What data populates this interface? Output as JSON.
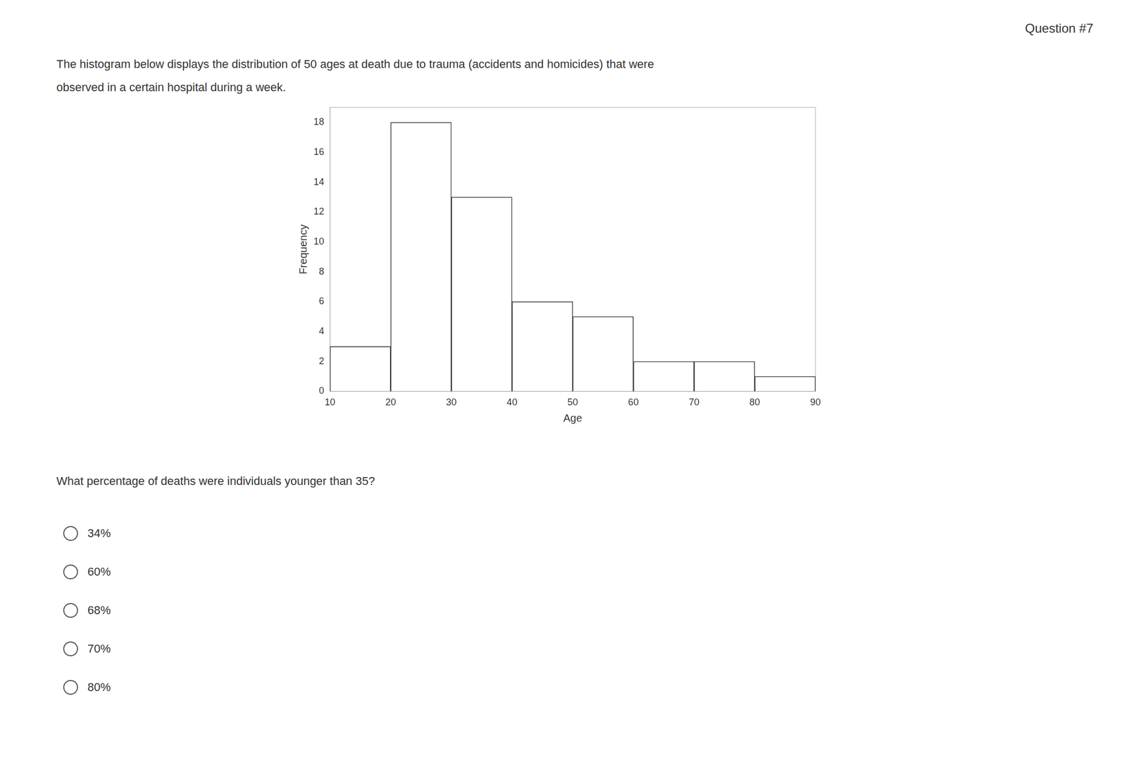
{
  "chart_data": {
    "type": "histogram",
    "title": "Question #7",
    "subtitle": [
      "The histogram below displays the distribution of 50 ages at death due to trauma (accidents and homicides) that were",
      "observed in a certain hospital during a week."
    ],
    "annotations": [
      "What percentage of deaths were individuals younger than 35?",
      "34%",
      "60%",
      "68%",
      "70%",
      "80%"
    ],
    "bins": [
      10,
      20,
      30,
      40,
      50,
      60,
      70,
      80,
      90
    ],
    "values": [
      3,
      18,
      13,
      6,
      5,
      2,
      2,
      1
    ],
    "xlabel": "Age",
    "ylabel": "Frequency",
    "xlim": [
      10,
      90
    ],
    "xticks": [
      10,
      20,
      30,
      40,
      50,
      60,
      70,
      80,
      90
    ],
    "ylim": [
      0,
      19
    ],
    "yticks": [
      0,
      2,
      4,
      6,
      8,
      10,
      12,
      14,
      16,
      18
    ],
    "color": "#ffffff",
    "grid": false
  }
}
